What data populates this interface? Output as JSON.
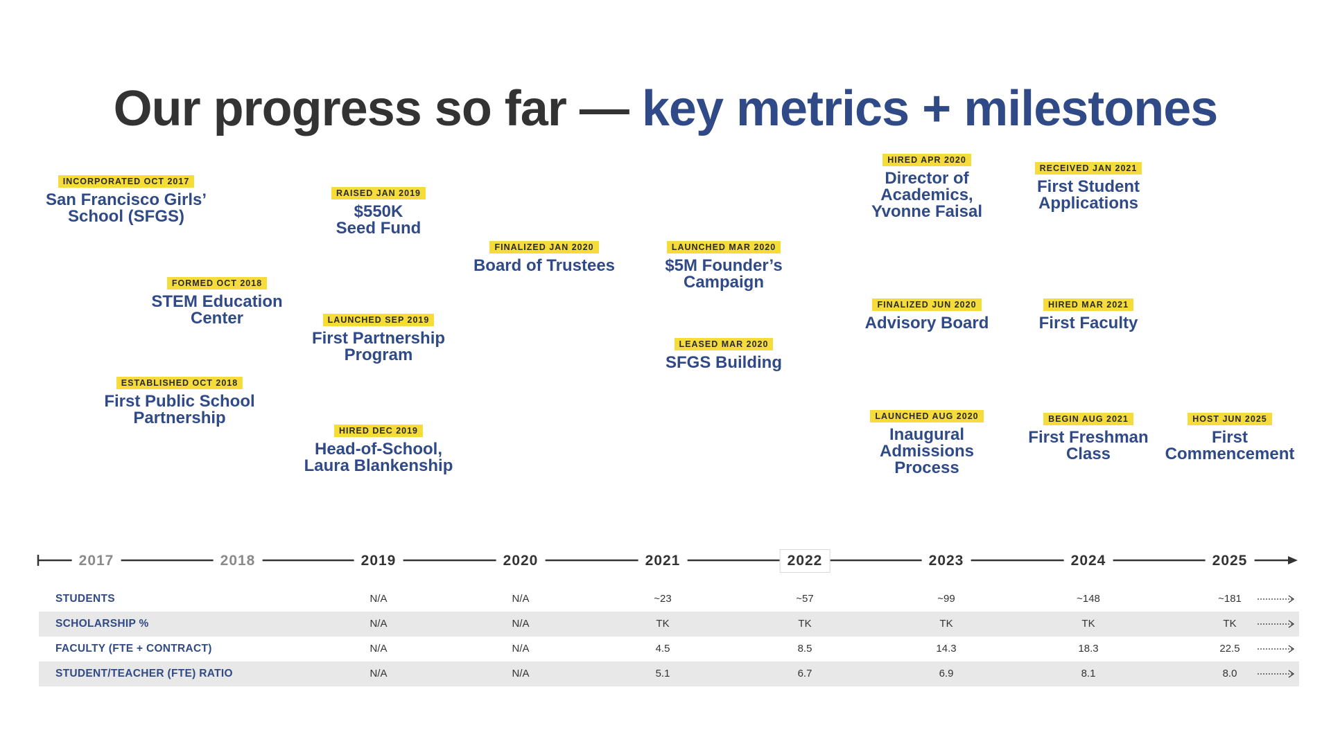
{
  "title": {
    "part1": "Our progress so far — ",
    "part2": "key metrics + milestones"
  },
  "milestones": [
    {
      "tag": "INCORPORATED OCT 2017",
      "lines": [
        "San Francisco Girls’",
        "School (SFGS)"
      ]
    },
    {
      "tag": "FORMED OCT 2018",
      "lines": [
        "STEM Education",
        "Center"
      ]
    },
    {
      "tag": "ESTABLISHED OCT 2018",
      "lines": [
        "First Public School",
        "Partnership"
      ]
    },
    {
      "tag": "RAISED JAN 2019",
      "lines": [
        "$550K",
        "Seed Fund"
      ]
    },
    {
      "tag": "LAUNCHED SEP 2019",
      "lines": [
        "First Partnership",
        "Program"
      ]
    },
    {
      "tag": "HIRED DEC 2019",
      "lines": [
        "Head-of-School,",
        "Laura Blankenship"
      ]
    },
    {
      "tag": "FINALIZED JAN 2020",
      "lines": [
        "Board of Trustees"
      ]
    },
    {
      "tag": "LAUNCHED MAR 2020",
      "lines": [
        "$5M Founder’s",
        "Campaign"
      ]
    },
    {
      "tag": "LEASED MAR 2020",
      "lines": [
        "SFGS Building"
      ]
    },
    {
      "tag": "HIRED APR 2020",
      "lines": [
        "Director of",
        "Academics,",
        "Yvonne Faisal"
      ]
    },
    {
      "tag": "FINALIZED JUN 2020",
      "lines": [
        "Advisory Board"
      ]
    },
    {
      "tag": "LAUNCHED AUG 2020",
      "lines": [
        "Inaugural",
        "Admissions",
        "Process"
      ]
    },
    {
      "tag": "RECEIVED JAN 2021",
      "lines": [
        "First Student",
        "Applications"
      ]
    },
    {
      "tag": "HIRED MAR 2021",
      "lines": [
        "First Faculty"
      ]
    },
    {
      "tag": "BEGIN AUG 2021",
      "lines": [
        "First Freshman",
        "Class"
      ]
    },
    {
      "tag": "HOST JUN 2025",
      "lines": [
        "First",
        "Commencement"
      ]
    }
  ],
  "years": [
    "2017",
    "2018",
    "2019",
    "2020",
    "2021",
    "2022",
    "2023",
    "2024",
    "2025"
  ],
  "metrics": [
    {
      "label": "STUDENTS",
      "values": [
        "N/A",
        "N/A",
        "~23",
        "~57",
        "~99",
        "~148",
        "~181"
      ]
    },
    {
      "label": "SCHOLARSHIP %",
      "values": [
        "N/A",
        "N/A",
        "TK",
        "TK",
        "TK",
        "TK",
        "TK"
      ]
    },
    {
      "label": "FACULTY (FTE + CONTRACT)",
      "values": [
        "N/A",
        "N/A",
        "4.5",
        "8.5",
        "14.3",
        "18.3",
        "22.5"
      ]
    },
    {
      "label": "STUDENT/TEACHER (FTE) RATIO",
      "values": [
        "N/A",
        "N/A",
        "5.1",
        "6.7",
        "6.9",
        "8.1",
        "8.0"
      ]
    }
  ],
  "colors": {
    "accent": "#2f4a86",
    "tag": "#f5dc3b",
    "dark": "#333333",
    "faded": "#8a8a8a",
    "row_shade": "#e8e8e8"
  }
}
